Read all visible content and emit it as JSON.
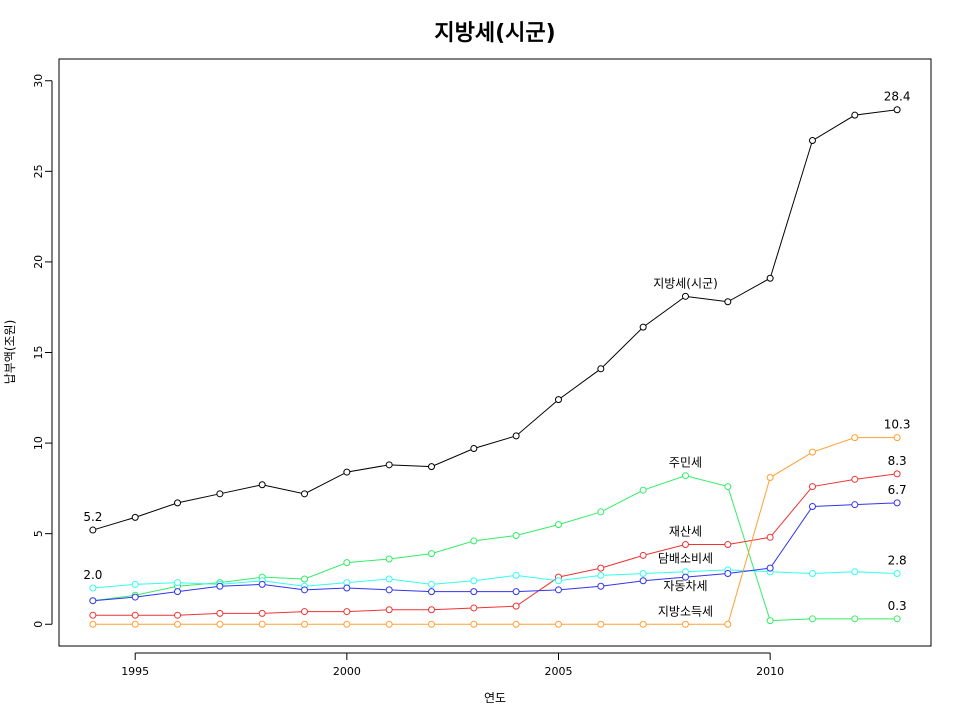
{
  "chart_data": {
    "type": "line",
    "title": "지방세(시군)",
    "xlabel": "연도",
    "ylabel": "납부액(조원)",
    "xlim": [
      1993.2,
      2013.8
    ],
    "ylim": [
      -1.2,
      31.2
    ],
    "x_ticks": [
      1995,
      2000,
      2005,
      2010
    ],
    "y_ticks": [
      0,
      5,
      10,
      15,
      20,
      25,
      30
    ],
    "grid": false,
    "legend": "none",
    "x": [
      1994,
      1995,
      1996,
      1997,
      1998,
      1999,
      2000,
      2001,
      2002,
      2003,
      2004,
      2005,
      2006,
      2007,
      2008,
      2009,
      2010,
      2011,
      2012,
      2013
    ],
    "series": [
      {
        "name": "지방세(시군)",
        "color": "#000000",
        "values": [
          5.2,
          5.9,
          6.7,
          7.2,
          7.7,
          7.2,
          8.4,
          8.8,
          8.7,
          9.7,
          10.4,
          12.4,
          14.1,
          16.4,
          18.1,
          17.8,
          19.1,
          26.7,
          28.1,
          28.4
        ]
      },
      {
        "name": "주민세",
        "color": "#33ee66",
        "values": [
          1.3,
          1.6,
          2.1,
          2.3,
          2.6,
          2.5,
          3.4,
          3.6,
          3.9,
          4.6,
          4.9,
          5.5,
          6.2,
          7.4,
          8.2,
          7.6,
          0.2,
          0.3,
          0.3,
          0.3
        ]
      },
      {
        "name": "재산세",
        "color": "#ee3333",
        "values": [
          0.5,
          0.5,
          0.5,
          0.6,
          0.6,
          0.7,
          0.7,
          0.8,
          0.8,
          0.9,
          1.0,
          2.6,
          3.1,
          3.8,
          4.4,
          4.4,
          4.8,
          7.6,
          8.0,
          8.3
        ]
      },
      {
        "name": "담배소비세",
        "color": "#33ffee",
        "values": [
          2.0,
          2.2,
          2.3,
          2.2,
          2.4,
          2.1,
          2.3,
          2.5,
          2.2,
          2.4,
          2.7,
          2.4,
          2.7,
          2.8,
          2.9,
          3.0,
          2.9,
          2.8,
          2.9,
          2.8
        ]
      },
      {
        "name": "자동차세",
        "color": "#3333ee",
        "values": [
          1.3,
          1.5,
          1.8,
          2.1,
          2.2,
          1.9,
          2.0,
          1.9,
          1.8,
          1.8,
          1.8,
          1.9,
          2.1,
          2.4,
          2.6,
          2.8,
          3.1,
          6.5,
          6.6,
          6.7
        ]
      },
      {
        "name": "지방소득세",
        "color": "#ffa033",
        "values": [
          0.0,
          0.0,
          0.0,
          0.0,
          0.0,
          0.0,
          0.0,
          0.0,
          0.0,
          0.0,
          0.0,
          0.0,
          0.0,
          0.0,
          0.0,
          0.0,
          8.1,
          9.5,
          10.3,
          10.3
        ]
      }
    ],
    "annotations": [
      {
        "text": "5.2",
        "x": 1994,
        "y": 5.2
      },
      {
        "text": "2.0",
        "x": 1994,
        "y": 2.0
      },
      {
        "text": "28.4",
        "x": 2013,
        "y": 28.4
      },
      {
        "text": "10.3",
        "x": 2013,
        "y": 10.3
      },
      {
        "text": "8.3",
        "x": 2013,
        "y": 8.3
      },
      {
        "text": "6.7",
        "x": 2013,
        "y": 6.7
      },
      {
        "text": "2.8",
        "x": 2013,
        "y": 2.8
      },
      {
        "text": "0.3",
        "x": 2013,
        "y": 0.3
      },
      {
        "text": "지방세(시군)",
        "x": 2008,
        "y": 18.1
      },
      {
        "text": "주민세",
        "x": 2008,
        "y": 8.2
      },
      {
        "text": "재산세",
        "x": 2008,
        "y": 4.4
      },
      {
        "text": "담배소비세",
        "x": 2008,
        "y": 2.9
      },
      {
        "text": "자동차세",
        "x": 2008,
        "y": 1.4
      },
      {
        "text": "지방소득세",
        "x": 2008,
        "y": 0.0
      }
    ]
  }
}
